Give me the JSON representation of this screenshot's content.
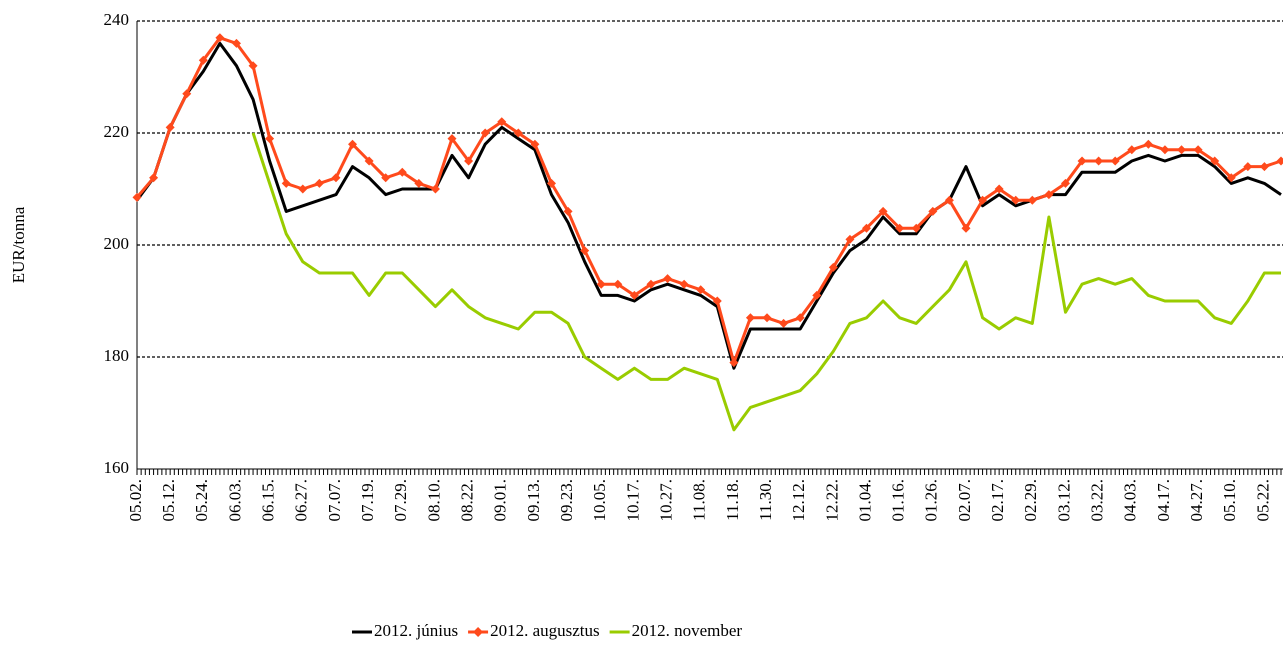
{
  "chart_data": {
    "type": "line",
    "y_label": "EUR/tonna",
    "categories": [
      "05.02.",
      null,
      "05.12.",
      null,
      "05.24.",
      null,
      "06.03.",
      null,
      "06.15.",
      null,
      "06.27.",
      null,
      "07.07.",
      null,
      "07.19.",
      null,
      "07.29.",
      null,
      "08.10.",
      null,
      "08.22.",
      null,
      "09.01.",
      null,
      "09.13.",
      null,
      "09.23.",
      null,
      "10.05.",
      null,
      "10.17.",
      null,
      "10.27.",
      null,
      "11.08.",
      null,
      "11.18.",
      null,
      "11.30.",
      null,
      "12.12.",
      null,
      "12.22.",
      null,
      "01.04.",
      null,
      "01.16.",
      null,
      "01.26.",
      null,
      "02.07.",
      null,
      "02.17.",
      null,
      "02.29.",
      null,
      "03.12.",
      null,
      "03.22.",
      null,
      "04.03.",
      null,
      "04.17.",
      null,
      "04.27.",
      null,
      "05.10.",
      null,
      "05.22.",
      null
    ],
    "series": [
      {
        "name": "2012. június",
        "color": "#000000",
        "marker": "none",
        "values": [
          208,
          212,
          221,
          227,
          231,
          236,
          232,
          226,
          215,
          206,
          207,
          208,
          209,
          214,
          212,
          209,
          210,
          210,
          210,
          216,
          212,
          218,
          221,
          219,
          217,
          209,
          204,
          197,
          191,
          191,
          190,
          192,
          193,
          192,
          191,
          189,
          178,
          185,
          185,
          185,
          185,
          190,
          195,
          199,
          201,
          205,
          202,
          202,
          206,
          208,
          214,
          207,
          209,
          207,
          208,
          209,
          209,
          213,
          213,
          213,
          215,
          216,
          215,
          216,
          216,
          214,
          211,
          212,
          211,
          209
        ]
      },
      {
        "name": "2012. augusztus",
        "color": "#ff4a1c",
        "marker": "diamond",
        "values": [
          208.5,
          212,
          221,
          227,
          233,
          237,
          236,
          232,
          219,
          211,
          210,
          211,
          212,
          218,
          215,
          212,
          213,
          211,
          210,
          219,
          215,
          220,
          222,
          220,
          218,
          211,
          206,
          199,
          193,
          193,
          191,
          193,
          194,
          193,
          192,
          190,
          179,
          187,
          187,
          186,
          187,
          191,
          196,
          201,
          203,
          206,
          203,
          203,
          206,
          208,
          203,
          208,
          210,
          208,
          208,
          209,
          211,
          215,
          215,
          215,
          217,
          218,
          217,
          217,
          217,
          215,
          212,
          214,
          214,
          215
        ]
      },
      {
        "name": "2012. november",
        "color": "#99cc00",
        "marker": "none",
        "values": [
          null,
          null,
          null,
          null,
          null,
          null,
          null,
          220,
          211,
          202,
          197,
          195,
          195,
          195,
          191,
          195,
          195,
          192,
          189,
          192,
          189,
          187,
          186,
          185,
          188,
          188,
          186,
          180,
          178,
          176,
          178,
          176,
          176,
          178,
          177,
          176,
          167,
          171,
          172,
          173,
          174,
          177,
          181,
          186,
          187,
          190,
          187,
          186,
          189,
          192,
          197,
          187,
          185,
          187,
          186,
          205,
          188,
          193,
          194,
          193,
          194,
          191,
          190,
          190,
          190,
          187,
          186,
          190,
          195,
          195
        ]
      }
    ],
    "ylim": [
      160,
      240
    ],
    "yticks": [
      160,
      180,
      200,
      220,
      240
    ],
    "grid": true,
    "legend": "bottom"
  }
}
